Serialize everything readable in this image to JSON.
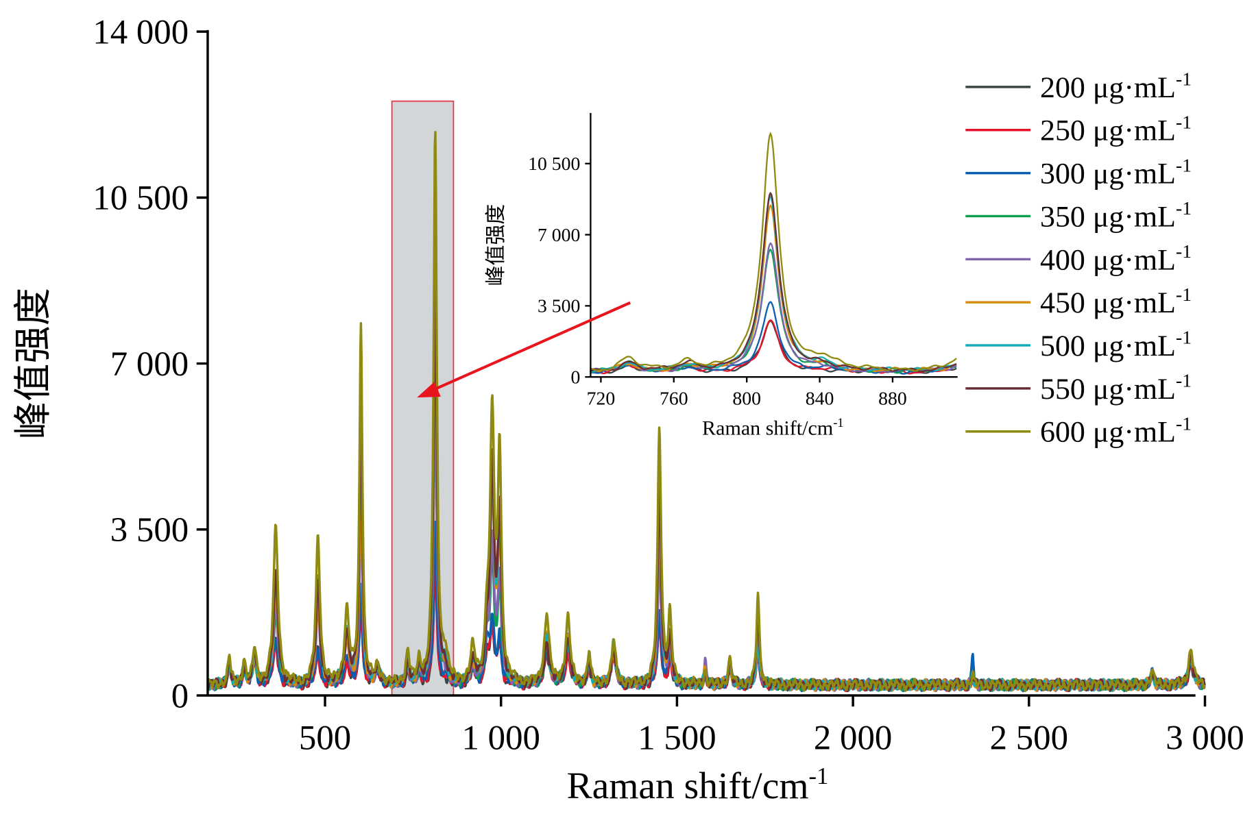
{
  "chart_data": {
    "type": "line",
    "xlabel": "Raman shift/cm-1",
    "ylabel": "峰值强度",
    "xlim": [
      167,
      3000
    ],
    "ylim": [
      0,
      14000
    ],
    "xticks": [
      500,
      1000,
      1500,
      2000,
      2500,
      3000
    ],
    "xtick_labels": [
      "500",
      "1 000",
      "1 500",
      "2 000",
      "2 500",
      "3 000"
    ],
    "yticks": [
      0,
      3500,
      7000,
      10500,
      14000
    ],
    "ytick_labels": [
      "0",
      "3 500",
      "7 000",
      "10 500",
      "14 000"
    ],
    "legend_position": "right",
    "highlight_range": [
      690,
      865
    ],
    "series": [
      {
        "name": "200 μg·mL-1",
        "color": "#3d4446"
      },
      {
        "name": "250 μg·mL-1",
        "color": "#e3142d"
      },
      {
        "name": "300 μg·mL-1",
        "color": "#0b5fb0"
      },
      {
        "name": "350 μg·mL-1",
        "color": "#0d9e52"
      },
      {
        "name": "400 μg·mL-1",
        "color": "#8064ae"
      },
      {
        "name": "450 μg·mL-1",
        "color": "#d98a0a"
      },
      {
        "name": "500 μg·mL-1",
        "color": "#16adb5"
      },
      {
        "name": "550 μg·mL-1",
        "color": "#6b2e35"
      },
      {
        "name": "600 μg·mL-1",
        "color": "#8f8a12"
      }
    ],
    "baseline": 220,
    "peaks_note": "Lorentzian peaks: center (cm-1), half width (cm-1), heights per series in order 200..600",
    "peaks": [
      {
        "center": 228,
        "width": 5,
        "heights": [
          400,
          400,
          400,
          450,
          450,
          500,
          500,
          500,
          600
        ]
      },
      {
        "center": 270,
        "width": 5,
        "heights": [
          300,
          300,
          300,
          350,
          350,
          400,
          400,
          400,
          500
        ]
      },
      {
        "center": 300,
        "width": 6,
        "heights": [
          500,
          500,
          500,
          600,
          600,
          600,
          650,
          700,
          750
        ]
      },
      {
        "center": 360,
        "width": 8,
        "heights": [
          900,
          800,
          1000,
          1500,
          1700,
          2000,
          2200,
          2300,
          3300
        ]
      },
      {
        "center": 480,
        "width": 7,
        "heights": [
          700,
          600,
          800,
          1700,
          1600,
          1800,
          2300,
          2100,
          3100
        ]
      },
      {
        "center": 562,
        "width": 8,
        "heights": [
          500,
          400,
          600,
          900,
          900,
          1000,
          1200,
          1100,
          1500
        ]
      },
      {
        "center": 602,
        "width": 5,
        "heights": [
          1800,
          1700,
          2100,
          5500,
          3500,
          4000,
          5800,
          6000,
          7600
        ]
      },
      {
        "center": 650,
        "width": 8,
        "heights": [
          300,
          300,
          300,
          300,
          300,
          300,
          300,
          300,
          350
        ]
      },
      {
        "center": 735,
        "width": 6,
        "heights": [
          300,
          350,
          350,
          400,
          350,
          400,
          450,
          450,
          650
        ]
      },
      {
        "center": 768,
        "width": 6,
        "heights": [
          200,
          250,
          250,
          250,
          250,
          250,
          250,
          350,
          450
        ]
      },
      {
        "center": 813,
        "width": 5.5,
        "heights": [
          2500,
          2500,
          3400,
          6100,
          6400,
          8100,
          8600,
          8800,
          11600
        ]
      },
      {
        "center": 842,
        "width": 8,
        "heights": [
          100,
          150,
          150,
          200,
          150,
          250,
          350,
          300,
          550
        ]
      },
      {
        "center": 920,
        "width": 8,
        "heights": [
          300,
          300,
          300,
          350,
          350,
          400,
          450,
          450,
          700
        ]
      },
      {
        "center": 960,
        "width": 6,
        "heights": [
          700,
          600,
          800,
          800,
          700,
          900,
          1000,
          800,
          1100
        ]
      },
      {
        "center": 975,
        "width": 7,
        "heights": [
          1100,
          1100,
          1300,
          2500,
          3000,
          4000,
          4200,
          4500,
          5600
        ]
      },
      {
        "center": 996,
        "width": 6,
        "heights": [
          900,
          900,
          1000,
          2000,
          2200,
          3000,
          3300,
          3500,
          4800
        ]
      },
      {
        "center": 1130,
        "width": 8,
        "heights": [
          700,
          700,
          800,
          800,
          900,
          1100,
          1000,
          900,
          1500
        ]
      },
      {
        "center": 1190,
        "width": 8,
        "heights": [
          700,
          600,
          800,
          900,
          1000,
          1000,
          900,
          1000,
          1400
        ]
      },
      {
        "center": 1250,
        "width": 5,
        "heights": [
          400,
          400,
          450,
          500,
          500,
          500,
          550,
          550,
          700
        ]
      },
      {
        "center": 1320,
        "width": 7,
        "heights": [
          600,
          600,
          700,
          800,
          700,
          800,
          900,
          700,
          900
        ]
      },
      {
        "center": 1450,
        "width": 6,
        "heights": [
          1300,
          1300,
          1600,
          2800,
          2600,
          3500,
          4000,
          4150,
          5400
        ]
      },
      {
        "center": 1480,
        "width": 6,
        "heights": [
          500,
          500,
          600,
          800,
          800,
          900,
          1000,
          1000,
          1400
        ]
      },
      {
        "center": 1580,
        "width": 4,
        "heights": [
          250,
          250,
          250,
          300,
          450,
          300,
          300,
          300,
          300
        ]
      },
      {
        "center": 1650,
        "width": 5,
        "heights": [
          400,
          400,
          400,
          450,
          450,
          500,
          500,
          500,
          550
        ]
      },
      {
        "center": 1730,
        "width": 5,
        "heights": [
          700,
          700,
          800,
          1000,
          900,
          1100,
          1100,
          1500,
          1900
        ]
      },
      {
        "center": 2340,
        "width": 3,
        "heights": [
          200,
          200,
          600,
          250,
          250,
          250,
          250,
          250,
          250
        ]
      },
      {
        "center": 2850,
        "width": 5,
        "heights": [
          250,
          250,
          250,
          250,
          250,
          250,
          250,
          300,
          300
        ]
      },
      {
        "center": 2960,
        "width": 8,
        "heights": [
          450,
          450,
          450,
          550,
          550,
          600,
          650,
          650,
          750
        ]
      }
    ],
    "inset": {
      "xlabel": "Raman shift/cm-1",
      "ylabel": "峰值强度",
      "xlim": [
        714,
        915
      ],
      "ylim": [
        0,
        12950
      ],
      "xticks": [
        720,
        760,
        800,
        840,
        880
      ],
      "xtick_labels": [
        "720",
        "760",
        "800",
        "840",
        "880"
      ],
      "yticks": [
        0,
        3500,
        7000,
        10500
      ],
      "ytick_labels": [
        "0",
        "3 500",
        "7 000",
        "10 500"
      ]
    }
  }
}
